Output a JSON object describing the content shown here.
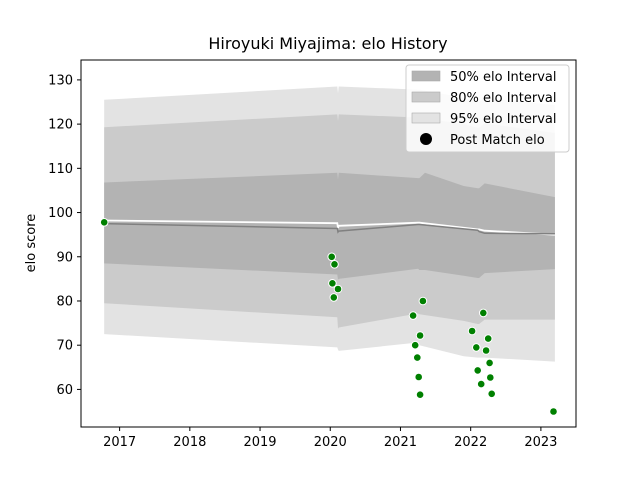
{
  "chart_data": {
    "type": "line",
    "title": "Hiroyuki Miyajima: elo History",
    "xlabel": "",
    "ylabel": "elo score",
    "xlim": [
      2016.45,
      2023.5
    ],
    "ylim": [
      51.5,
      134.5
    ],
    "x_ticks": [
      2017,
      2018,
      2019,
      2020,
      2021,
      2022,
      2023
    ],
    "y_ticks": [
      60,
      70,
      80,
      90,
      100,
      110,
      120,
      130
    ],
    "colors": {
      "band_50": "#b3b3b3",
      "band_80": "#cbcbcb",
      "band_95": "#e3e3e3",
      "mean_line": "#ffffff",
      "median_line": "#808080",
      "points": "#008000"
    },
    "legend": {
      "placement": "top-right",
      "entries": [
        {
          "label": "50% elo Interval",
          "kind": "band",
          "color": "#b3b3b3"
        },
        {
          "label": "80% elo Interval",
          "kind": "band",
          "color": "#cbcbcb"
        },
        {
          "label": "95% elo Interval",
          "kind": "band",
          "color": "#e3e3e3"
        },
        {
          "label": "Post Match elo",
          "kind": "marker",
          "color": "#000000"
        }
      ]
    },
    "series": [
      {
        "name": "95% elo Interval",
        "kind": "band",
        "x": [
          2016.78,
          2020.1,
          2020.11,
          2020.12,
          2021.25,
          2021.27,
          2021.9,
          2022.1,
          2022.12,
          2022.2,
          2023.2
        ],
        "upper": [
          125.5,
          128.5,
          127.0,
          128.5,
          127.8,
          127.8,
          126.0,
          125.0,
          125.0,
          126.0,
          124.3
        ],
        "lower": [
          72.5,
          69.5,
          69.0,
          68.7,
          70.6,
          70.0,
          67.5,
          67.2,
          67.2,
          67.2,
          66.3
        ]
      },
      {
        "name": "80% elo Interval",
        "kind": "band",
        "x": [
          2016.78,
          2020.1,
          2020.11,
          2020.12,
          2021.25,
          2021.27,
          2021.9,
          2022.1,
          2022.12,
          2022.2,
          2023.2
        ],
        "upper": [
          119.3,
          122.2,
          120.7,
          122.2,
          121.5,
          121.5,
          120.0,
          119.2,
          119.2,
          120.2,
          118.0
        ],
        "lower": [
          79.5,
          76.3,
          73.7,
          74.0,
          77.2,
          77.0,
          75.5,
          74.8,
          74.8,
          75.8,
          75.8
        ]
      },
      {
        "name": "50% elo Interval",
        "kind": "band",
        "x": [
          2016.78,
          2020.1,
          2020.11,
          2020.12,
          2021.25,
          2021.27,
          2021.35,
          2021.9,
          2022.1,
          2022.12,
          2022.2,
          2023.2
        ],
        "upper": [
          106.8,
          109.0,
          107.5,
          109.0,
          107.8,
          107.8,
          109.0,
          106.0,
          105.5,
          105.5,
          106.6,
          103.5
        ],
        "lower": [
          88.5,
          86.0,
          84.8,
          85.0,
          87.3,
          87.0,
          87.0,
          85.7,
          85.2,
          85.2,
          86.3,
          87.2
        ]
      },
      {
        "name": "mean",
        "kind": "line",
        "x": [
          2016.78,
          2020.1,
          2020.11,
          2020.12,
          2021.25,
          2021.27,
          2022.1,
          2022.12,
          2022.2,
          2023.2
        ],
        "values": [
          98.2,
          97.6,
          96.5,
          97.0,
          97.7,
          97.7,
          96.2,
          96.2,
          95.9,
          95.0
        ]
      },
      {
        "name": "median",
        "kind": "line",
        "x": [
          2016.78,
          2020.1,
          2020.11,
          2020.12,
          2021.25,
          2021.27,
          2022.1,
          2022.12,
          2022.2,
          2023.2
        ],
        "values": [
          97.5,
          96.4,
          95.6,
          95.8,
          97.3,
          97.3,
          96.0,
          95.7,
          95.3,
          95.2
        ]
      },
      {
        "name": "Post Match elo",
        "kind": "scatter",
        "x": [
          2016.78,
          2020.02,
          2020.06,
          2020.03,
          2020.11,
          2020.05,
          2021.18,
          2021.32,
          2021.28,
          2021.21,
          2021.24,
          2021.26,
          2021.28,
          2022.02,
          2022.08,
          2022.1,
          2022.15,
          2022.18,
          2022.22,
          2022.25,
          2022.27,
          2022.28,
          2022.3,
          2023.18
        ],
        "values": [
          97.8,
          90.0,
          88.3,
          84.0,
          82.7,
          80.8,
          76.7,
          80.0,
          72.2,
          70.0,
          67.2,
          62.8,
          58.8,
          73.2,
          69.5,
          64.3,
          61.2,
          77.3,
          68.8,
          71.5,
          66.0,
          62.7,
          59.0,
          55.0
        ]
      }
    ]
  }
}
